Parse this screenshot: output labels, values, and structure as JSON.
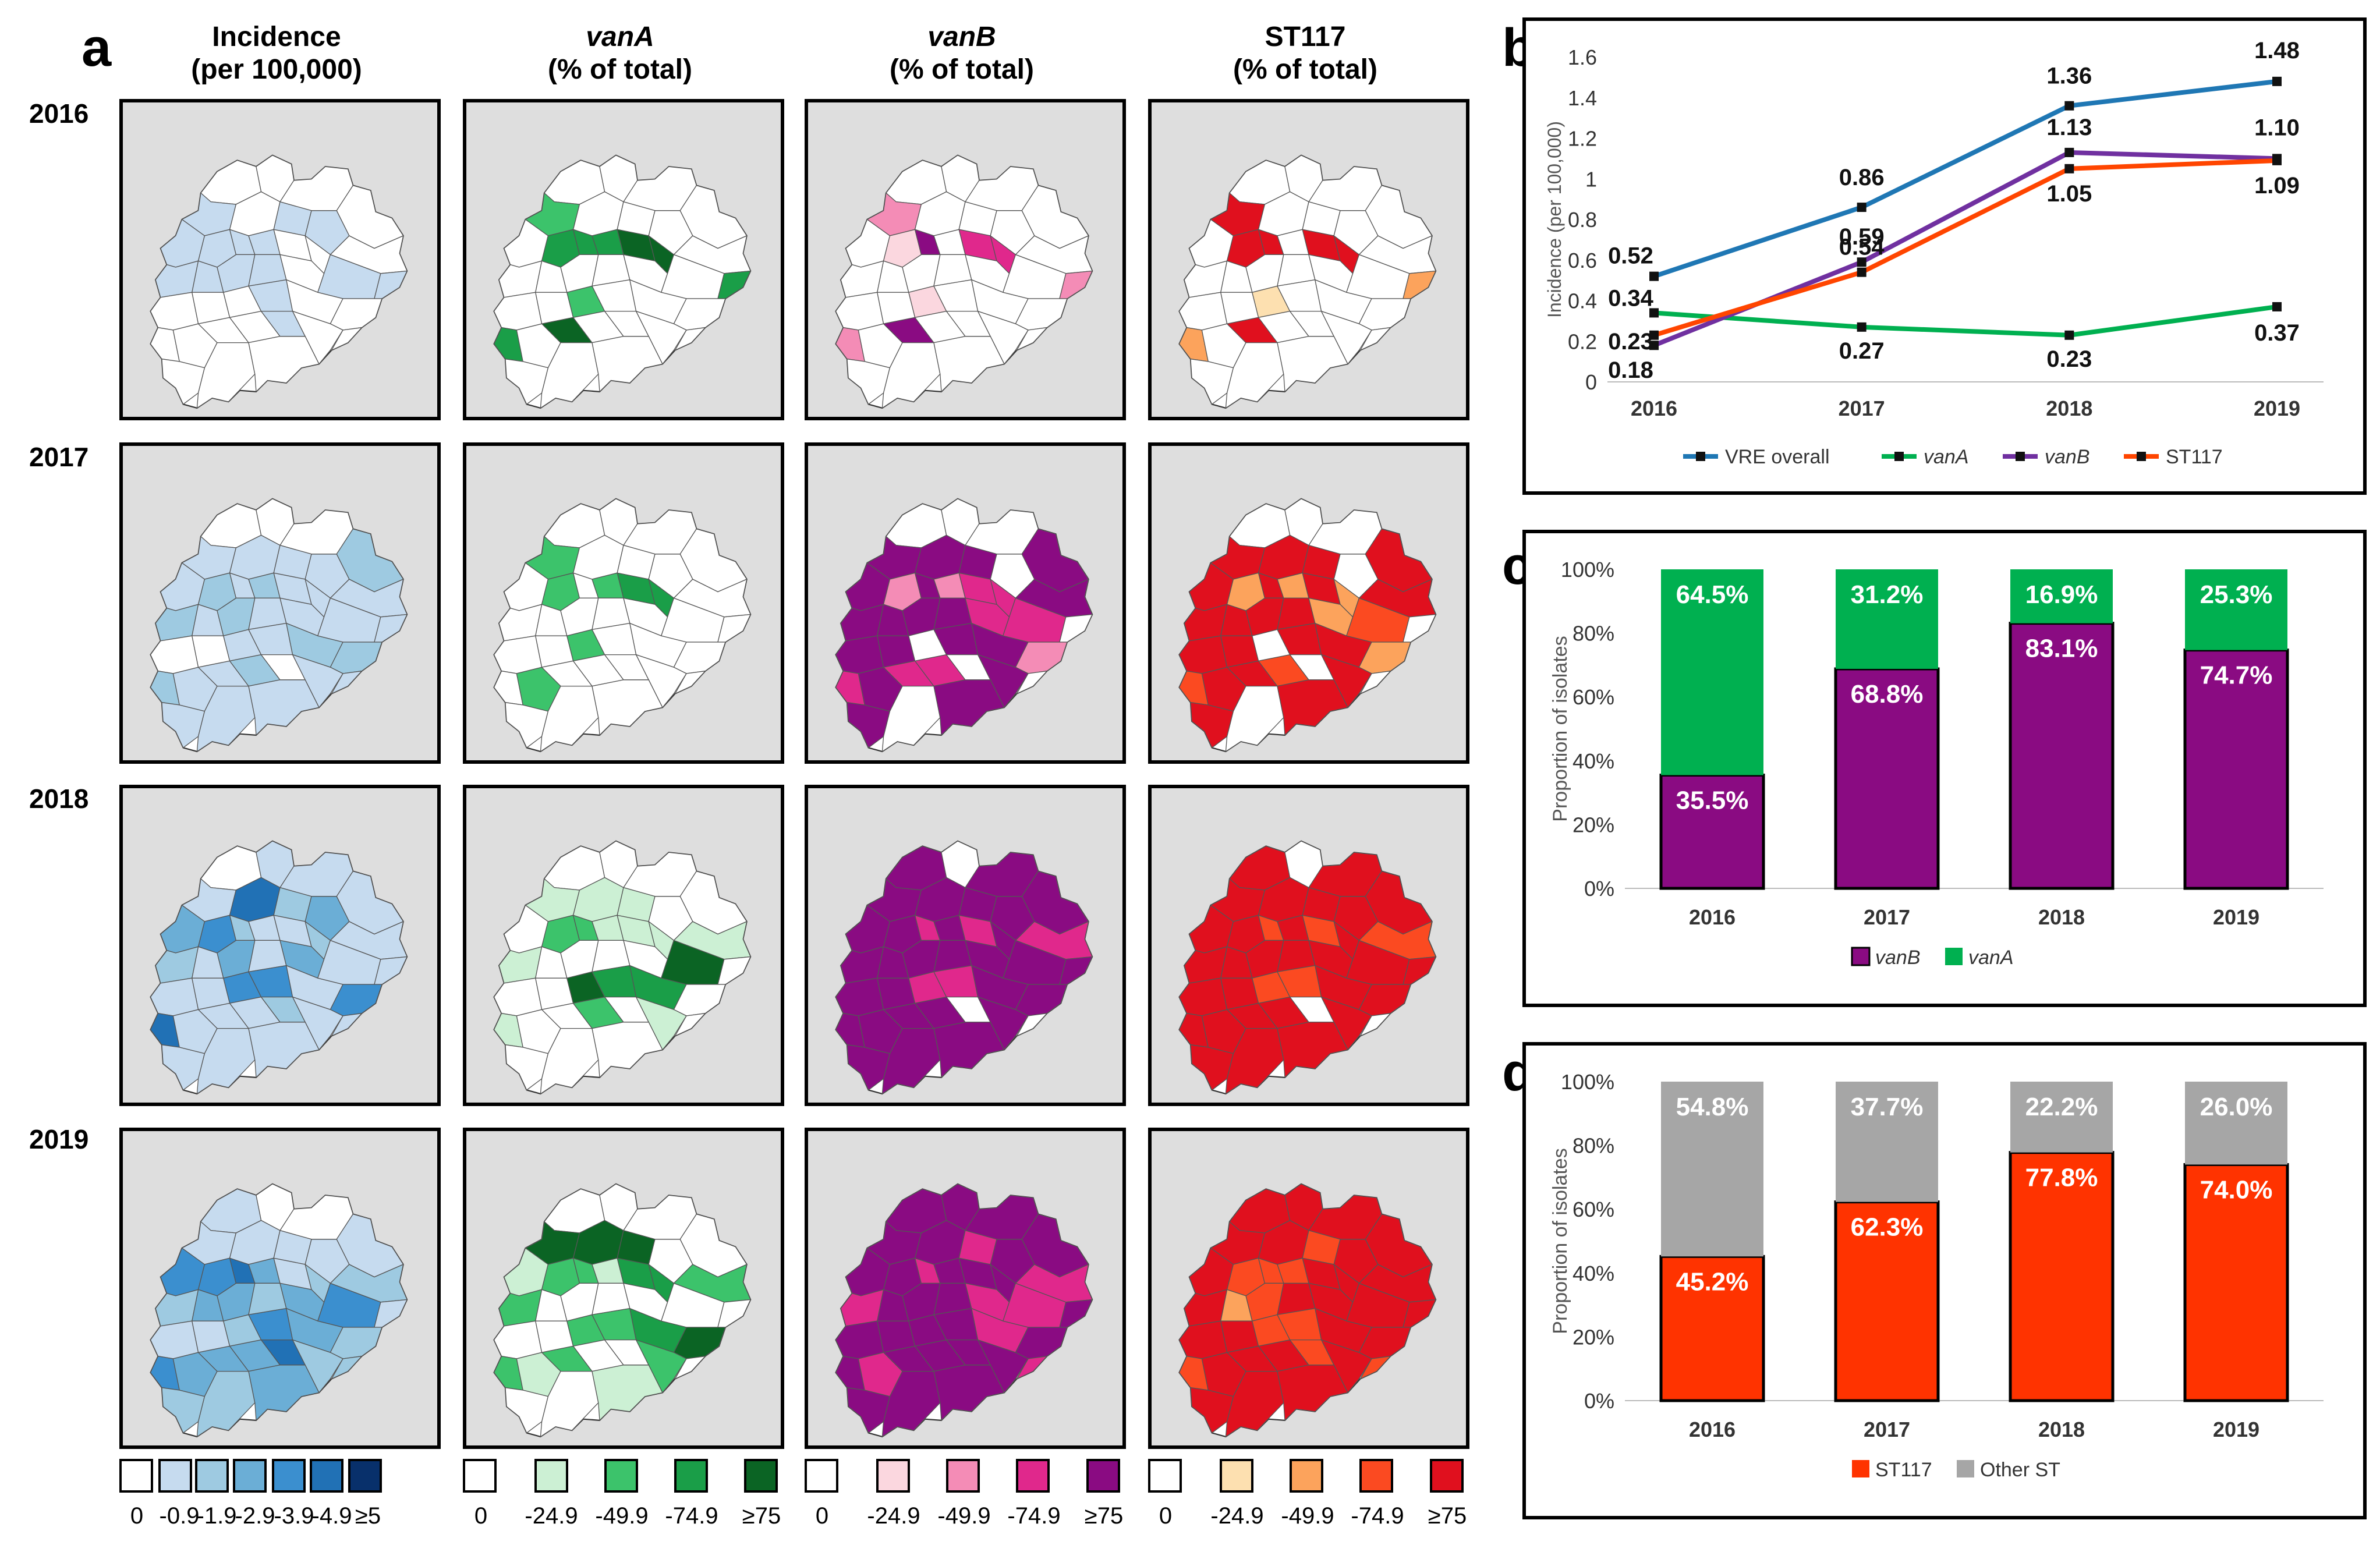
{
  "panel_a": {
    "label": "a",
    "columns": [
      {
        "title_line1": "Incidence",
        "title_line2": "(per 100,000)",
        "italic": false
      },
      {
        "title_line1": "vanA",
        "title_line2": "(% of total)",
        "italic": true
      },
      {
        "title_line1": "vanB",
        "title_line2": "(% of total)",
        "italic": true
      },
      {
        "title_line1": "ST117",
        "title_line2": "(% of total)",
        "italic": false
      }
    ],
    "years": [
      "2016",
      "2017",
      "2018",
      "2019"
    ],
    "palettes": {
      "incidence": [
        "#ffffff",
        "#c6dbef",
        "#9ecae1",
        "#6baed6",
        "#3b8fcf",
        "#2171b5",
        "#08306b"
      ],
      "vanA": [
        "#ffffff",
        "#ccf0d4",
        "#3cc36b",
        "#1a9e48",
        "#0b6424"
      ],
      "vanB": [
        "#ffffff",
        "#fbd7df",
        "#f48cb6",
        "#e0288c",
        "#8a0b82"
      ],
      "st117": [
        "#ffffff",
        "#fde0b0",
        "#fca35c",
        "#fb4a21",
        "#e0101e"
      ]
    },
    "legends": {
      "incidence": [
        "0",
        "-0.9",
        "-1.9",
        "-2.9",
        "-3.9",
        "-4.9",
        "≥5"
      ],
      "vanA": [
        "0",
        "-24.9",
        "-49.9",
        "-74.9",
        "≥75"
      ],
      "vanB": [
        "0",
        "-24.9",
        "-49.9",
        "-74.9",
        "≥75"
      ],
      "st117": [
        "0",
        "-24.9",
        "-49.9",
        "-74.9",
        "≥75"
      ]
    }
  },
  "chart_data": [
    {
      "panel": "b",
      "type": "line",
      "x": [
        "2016",
        "2017",
        "2018",
        "2019"
      ],
      "ylabel": "Incidence (per 100,000)",
      "ylim": [
        0,
        1.6
      ],
      "yticks": [
        "0",
        "0.2",
        "0.4",
        "0.6",
        "0.8",
        "1",
        "1.2",
        "1.4",
        "1.6"
      ],
      "series": [
        {
          "name": "VRE overall",
          "italic": false,
          "color": "#1f77b4",
          "values": [
            0.52,
            0.86,
            1.36,
            1.48
          ],
          "labels": [
            "0.52",
            "0.86",
            "1.36",
            "1.48"
          ]
        },
        {
          "name": "vanA",
          "italic": true,
          "color": "#00b050",
          "values": [
            0.34,
            0.27,
            0.23,
            0.37
          ],
          "labels": [
            "0.34",
            "0.27",
            "0.23",
            "0.37"
          ]
        },
        {
          "name": "vanB",
          "italic": true,
          "color": "#7030a0",
          "values": [
            0.18,
            0.59,
            1.13,
            1.1
          ],
          "labels": [
            "0.18",
            "0.59",
            "1.13",
            "1.10"
          ]
        },
        {
          "name": "ST117",
          "italic": false,
          "color": "#ff4500",
          "values": [
            0.23,
            0.54,
            1.05,
            1.09
          ],
          "labels": [
            "0.23",
            "0.54",
            "1.05",
            "1.09"
          ]
        }
      ]
    },
    {
      "panel": "c",
      "type": "bar",
      "stacked": true,
      "categories": [
        "2016",
        "2017",
        "2018",
        "2019"
      ],
      "ylabel": "Proportion of isolates",
      "yticks": [
        "0%",
        "20%",
        "40%",
        "60%",
        "80%",
        "100%"
      ],
      "series": [
        {
          "name": "vanB",
          "italic": true,
          "color": "#8a0b82",
          "values": [
            35.5,
            68.8,
            83.1,
            74.7
          ],
          "labels": [
            "35.5%",
            "68.8%",
            "83.1%",
            "74.7%"
          ]
        },
        {
          "name": "vanA",
          "italic": true,
          "color": "#00b050",
          "values": [
            64.5,
            31.2,
            16.9,
            25.3
          ],
          "labels": [
            "64.5%",
            "31.2%",
            "16.9%",
            "25.3%"
          ]
        }
      ]
    },
    {
      "panel": "d",
      "type": "bar",
      "stacked": true,
      "categories": [
        "2016",
        "2017",
        "2018",
        "2019"
      ],
      "ylabel": "Proportion of isolates",
      "yticks": [
        "0%",
        "20%",
        "40%",
        "60%",
        "80%",
        "100%"
      ],
      "series": [
        {
          "name": "ST117",
          "italic": false,
          "color": "#ff3300",
          "values": [
            45.2,
            62.3,
            77.8,
            74.0
          ],
          "labels": [
            "45.2%",
            "62.3%",
            "77.8%",
            "74.0%"
          ]
        },
        {
          "name": "Other ST",
          "italic": false,
          "color": "#a6a6a6",
          "values": [
            54.8,
            37.7,
            22.2,
            26.0
          ],
          "labels": [
            "54.8%",
            "37.7%",
            "22.2%",
            "26.0%"
          ]
        }
      ]
    }
  ]
}
